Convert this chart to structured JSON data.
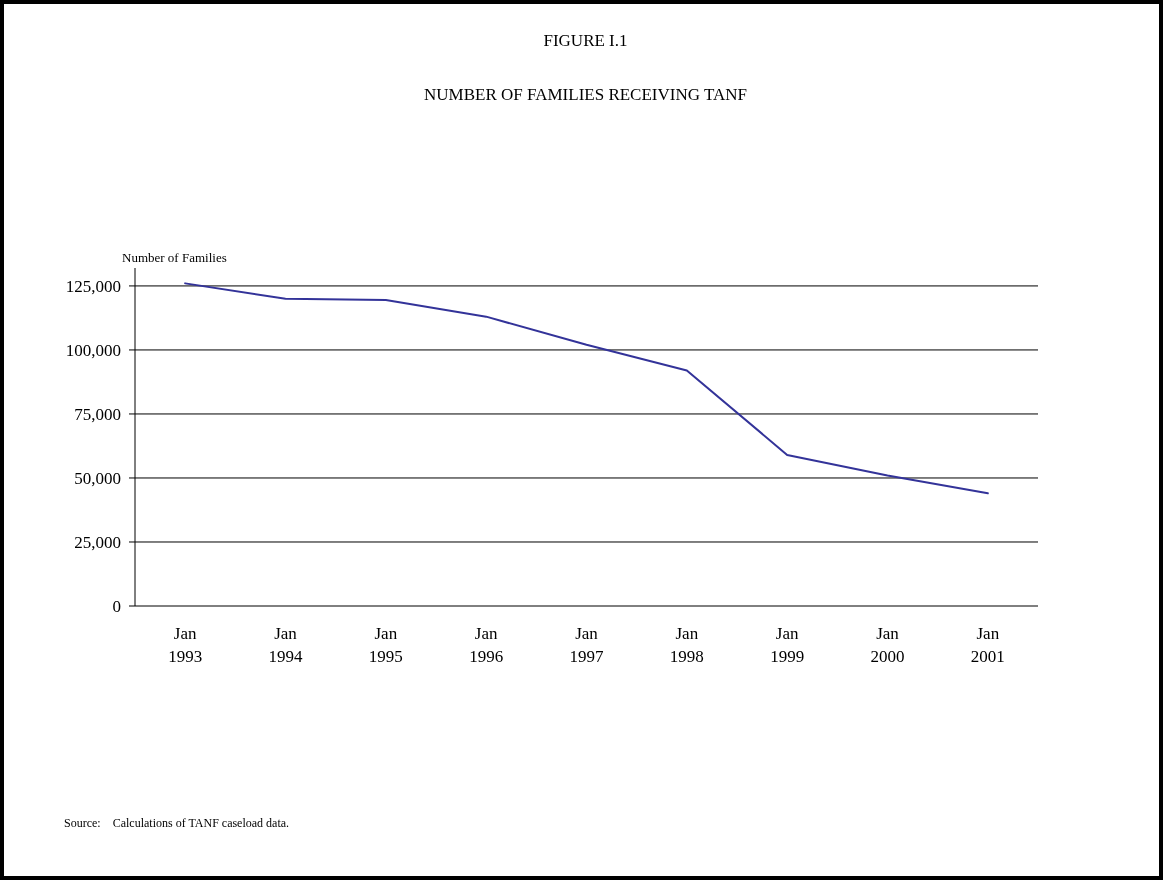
{
  "chart_data": {
    "type": "line",
    "title": "FIGURE I.1",
    "subtitle": "NUMBER OF FAMILIES RECEIVING TANF",
    "ylabel": "Number of Families",
    "categories": [
      "Jan 1993",
      "Jan 1994",
      "Jan 1995",
      "Jan 1996",
      "Jan 1997",
      "Jan 1998",
      "Jan 1999",
      "Jan 2000",
      "Jan 2001"
    ],
    "series": [
      {
        "color": "#333399",
        "values": [
          126000,
          120000,
          119500,
          113000,
          102000,
          92000,
          59000,
          51000,
          44000
        ]
      }
    ],
    "ylim": [
      0,
      132000
    ],
    "yticks": [
      0,
      {
        "value": 25000,
        "label": "25,000"
      },
      {
        "value": 50000,
        "label": "50,000"
      },
      {
        "value": 75000,
        "label": "75,000"
      },
      {
        "value": 100000,
        "label": "100,000"
      },
      {
        "value": 125000,
        "label": "125,000"
      }
    ],
    "grid": "y",
    "marker": "none",
    "line_style": "solid",
    "annotations": [
      "Source:    Calculations of TANF caseload data."
    ]
  }
}
